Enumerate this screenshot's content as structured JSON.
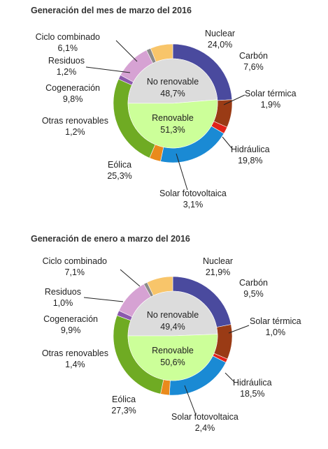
{
  "chart_data": [
    {
      "type": "pie",
      "title": "Generación del mes de marzo del 2016",
      "inner_ring": [
        {
          "label": "No renovable",
          "value_text": "48,7%",
          "value": 48.7
        },
        {
          "label": "Renovable",
          "value_text": "51,3%",
          "value": 51.3
        }
      ],
      "slices": [
        {
          "name": "Nuclear",
          "value_text": "24,0%",
          "value": 24.0,
          "color": "#4a4a9e"
        },
        {
          "name": "Carbón",
          "value_text": "7,6%",
          "value": 7.6,
          "color": "#9a3b15"
        },
        {
          "name": "Solar térmica",
          "value_text": "1,9%",
          "value": 1.9,
          "color": "#e2231a"
        },
        {
          "name": "Hidráulica",
          "value_text": "19,8%",
          "value": 19.8,
          "color": "#1a8ad4"
        },
        {
          "name": "Solar fotovoltaica",
          "value_text": "3,1%",
          "value": 3.1,
          "color": "#ea8a1c"
        },
        {
          "name": "Eólica",
          "value_text": "25,3%",
          "value": 25.3,
          "color": "#6fab23"
        },
        {
          "name": "Otras renovables",
          "value_text": "1,2%",
          "value": 1.2,
          "color": "#8c59ad"
        },
        {
          "name": "Cogeneración",
          "value_text": "9,8%",
          "value": 9.8,
          "color": "#d6a2d3"
        },
        {
          "name": "Residuos",
          "value_text": "1,2%",
          "value": 1.2,
          "color": "#8a8a8a"
        },
        {
          "name": "Ciclo combinado",
          "value_text": "6,1%",
          "value": 6.1,
          "color": "#f8c56a"
        }
      ]
    },
    {
      "type": "pie",
      "title": "Generación de enero a marzo del 2016",
      "inner_ring": [
        {
          "label": "No renovable",
          "value_text": "49,4%",
          "value": 49.4
        },
        {
          "label": "Renovable",
          "value_text": "50,6%",
          "value": 50.6
        }
      ],
      "slices": [
        {
          "name": "Nuclear",
          "value_text": "21,9%",
          "value": 21.9,
          "color": "#4a4a9e"
        },
        {
          "name": "Carbón",
          "value_text": "9,5%",
          "value": 9.5,
          "color": "#9a3b15"
        },
        {
          "name": "Solar térmica",
          "value_text": "1,0%",
          "value": 1.0,
          "color": "#e2231a"
        },
        {
          "name": "Hidráulica",
          "value_text": "18,5%",
          "value": 18.5,
          "color": "#1a8ad4"
        },
        {
          "name": "Solar fotovoltaica",
          "value_text": "2,4%",
          "value": 2.4,
          "color": "#ea8a1c"
        },
        {
          "name": "Eólica",
          "value_text": "27,3%",
          "value": 27.3,
          "color": "#6fab23"
        },
        {
          "name": "Otras renovables",
          "value_text": "1,4%",
          "value": 1.4,
          "color": "#8c59ad"
        },
        {
          "name": "Cogeneración",
          "value_text": "9,9%",
          "value": 9.9,
          "color": "#d6a2d3"
        },
        {
          "name": "Residuos",
          "value_text": "1,0%",
          "value": 1.0,
          "color": "#8a8a8a"
        },
        {
          "name": "Ciclo combinado",
          "value_text": "7,1%",
          "value": 7.1,
          "color": "#f8c56a"
        }
      ]
    }
  ],
  "colors": {
    "inner_no_renovable": "#dcdcdc",
    "inner_renovable": "#ccff99",
    "leader_line": "#222222"
  }
}
